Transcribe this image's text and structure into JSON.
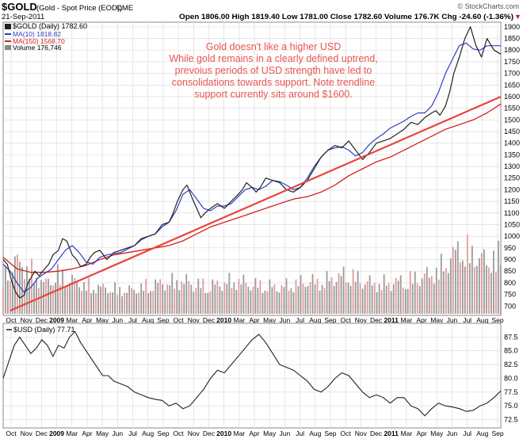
{
  "header": {
    "symbol": "$GOLD",
    "description": "(Gold - Spot Price (EOD))",
    "exchange": "CME",
    "date": "21-Sep-2011",
    "watermark": "© StockCharts.com",
    "ohlc": "Open 1806.00  High 1819.40  Low 1781.00  Close 1782.60  Volume 176.7K  Chg -24.60 (-1.36%)",
    "chg_arrow": "▼"
  },
  "legend": {
    "price": "$GOLD (Daily) 1782.60",
    "ma10": "MA(10) 1818.82",
    "ma150": "MA(150) 1568.70",
    "volume": "Volume 176,746"
  },
  "annotation": {
    "lines": [
      "Gold doesn't like a higher USD",
      "While gold remains in a clearly defined uptrend,",
      "prevoius periods of USD strength have led to",
      "consolidations towards support. Note trendline",
      "support currently sits around $1600."
    ]
  },
  "colors": {
    "price": "#222222",
    "ma10": "#2e3ec8",
    "ma150": "#d62020",
    "trendline": "#e8453c",
    "volume": "#9a9a9a",
    "volume_down": "#e59a9a",
    "grid": "#d8d8d8",
    "annotation": "#e8544f"
  },
  "chart_data": [
    {
      "type": "line",
      "title": "$GOLD (Daily) 1782.60",
      "x_labels": [
        "Oct",
        "Nov",
        "Dec",
        "2009",
        "Mar",
        "Apr",
        "May",
        "Jun",
        "Jul",
        "Aug",
        "Sep",
        "Oct",
        "Nov",
        "Dec",
        "2010",
        "Mar",
        "Apr",
        "May",
        "Jun",
        "Jul",
        "Aug",
        "Sep",
        "Oct",
        "Nov",
        "Dec",
        "2011",
        "Mar",
        "Apr",
        "May",
        "Jun",
        "Jul",
        "Aug",
        "Sep"
      ],
      "y_ticks": [
        700,
        750,
        800,
        850,
        900,
        950,
        1000,
        1050,
        1100,
        1150,
        1200,
        1250,
        1300,
        1350,
        1400,
        1450,
        1500,
        1550,
        1600,
        1650,
        1700,
        1750,
        1800,
        1850,
        1900
      ],
      "ylim": [
        660,
        1920
      ],
      "x_range": [
        0,
        36
      ],
      "series": [
        {
          "name": "$GOLD",
          "x": [
            0,
            0.3,
            0.6,
            0.9,
            1.2,
            1.5,
            1.8,
            2,
            2.3,
            2.6,
            3,
            3.3,
            3.6,
            4,
            4.3,
            4.6,
            5,
            5.3,
            5.6,
            6,
            6.3,
            6.6,
            7,
            7.5,
            8,
            8.5,
            9,
            9.5,
            10,
            10.5,
            11,
            11.5,
            12,
            12.3,
            12.6,
            13,
            13.3,
            13.7,
            14,
            14.3,
            14.6,
            15,
            15.5,
            16,
            16.5,
            17,
            17.3,
            17.6,
            18,
            18.3,
            18.6,
            19,
            19.5,
            20,
            20.5,
            21,
            21.5,
            22,
            22.5,
            23,
            23.5,
            24,
            24.5,
            25,
            25.5,
            26,
            26.5,
            27,
            27.5,
            28,
            28.5,
            29,
            29.5,
            30,
            30.5,
            31,
            31.3,
            31.6,
            32,
            32.3,
            32.6,
            33,
            33.4,
            33.8,
            34.2,
            34.6,
            35,
            35.5,
            36
          ],
          "values": [
            900,
            880,
            810,
            760,
            735,
            745,
            800,
            820,
            850,
            830,
            860,
            880,
            920,
            940,
            990,
            980,
            920,
            900,
            870,
            880,
            910,
            930,
            940,
            900,
            930,
            940,
            950,
            960,
            990,
            1000,
            1010,
            1050,
            1060,
            1100,
            1150,
            1200,
            1220,
            1160,
            1120,
            1080,
            1100,
            1120,
            1140,
            1120,
            1150,
            1180,
            1200,
            1230,
            1210,
            1190,
            1210,
            1250,
            1240,
            1230,
            1200,
            1190,
            1210,
            1240,
            1290,
            1340,
            1370,
            1390,
            1380,
            1410,
            1370,
            1330,
            1360,
            1400,
            1410,
            1420,
            1440,
            1460,
            1490,
            1480,
            1510,
            1530,
            1540,
            1520,
            1560,
            1620,
            1700,
            1770,
            1850,
            1900,
            1820,
            1770,
            1850,
            1800,
            1782.6
          ]
        },
        {
          "name": "MA(10)",
          "x": [
            0,
            0.5,
            1,
            1.5,
            2,
            2.5,
            3,
            3.5,
            4,
            4.5,
            5,
            5.5,
            6,
            6.5,
            7,
            7.5,
            8,
            8.5,
            9,
            9.5,
            10,
            10.5,
            11,
            11.5,
            12,
            12.5,
            13,
            13.5,
            14,
            14.5,
            15,
            15.5,
            16,
            16.5,
            17,
            17.5,
            18,
            18.5,
            19,
            19.5,
            20,
            20.5,
            21,
            21.5,
            22,
            22.5,
            23,
            23.5,
            24,
            24.5,
            25,
            25.5,
            26,
            26.5,
            27,
            27.5,
            28,
            28.5,
            29,
            29.5,
            30,
            30.5,
            31,
            31.5,
            32,
            32.5,
            33,
            33.5,
            34,
            34.5,
            35,
            35.5,
            36
          ],
          "values": [
            880,
            850,
            800,
            760,
            780,
            820,
            840,
            860,
            900,
            940,
            960,
            930,
            890,
            880,
            910,
            920,
            925,
            930,
            945,
            960,
            985,
            1000,
            1010,
            1040,
            1060,
            1110,
            1180,
            1200,
            1160,
            1120,
            1110,
            1130,
            1130,
            1140,
            1170,
            1200,
            1210,
            1200,
            1215,
            1240,
            1235,
            1220,
            1200,
            1210,
            1250,
            1300,
            1340,
            1370,
            1380,
            1385,
            1370,
            1345,
            1360,
            1395,
            1420,
            1440,
            1465,
            1480,
            1495,
            1515,
            1530,
            1530,
            1560,
            1620,
            1700,
            1760,
            1820,
            1830,
            1805,
            1800,
            1818.82,
            1818.82,
            1818.82
          ]
        },
        {
          "name": "MA(150)",
          "x": [
            0,
            1,
            2,
            3,
            4,
            5,
            6,
            7,
            8,
            9,
            10,
            11,
            12,
            13,
            14,
            15,
            16,
            17,
            18,
            19,
            20,
            21,
            22,
            23,
            24,
            25,
            26,
            27,
            28,
            29,
            30,
            31,
            32,
            33,
            34,
            35,
            36
          ],
          "values": [
            910,
            860,
            845,
            845,
            850,
            860,
            875,
            900,
            920,
            930,
            940,
            950,
            960,
            980,
            1010,
            1040,
            1060,
            1080,
            1100,
            1120,
            1140,
            1160,
            1170,
            1190,
            1220,
            1260,
            1290,
            1320,
            1340,
            1370,
            1400,
            1430,
            1460,
            1480,
            1500,
            1530,
            1568.7
          ]
        },
        {
          "name": "Trendline",
          "x": [
            0.5,
            36
          ],
          "values": [
            680,
            1600
          ]
        }
      ],
      "volume": {
        "name": "Volume",
        "latest": 176746,
        "x": [
          0,
          1,
          2,
          3,
          4,
          5,
          6,
          7,
          8,
          9,
          10,
          11,
          12,
          13,
          14,
          15,
          16,
          17,
          18,
          19,
          20,
          21,
          22,
          23,
          24,
          25,
          26,
          27,
          28,
          29,
          30,
          31,
          32,
          33,
          34,
          35,
          36
        ],
        "values": [
          110,
          160,
          130,
          90,
          120,
          100,
          85,
          80,
          75,
          70,
          80,
          90,
          95,
          100,
          90,
          85,
          95,
          100,
          90,
          85,
          80,
          90,
          100,
          95,
          110,
          120,
          100,
          90,
          95,
          100,
          110,
          120,
          150,
          200,
          180,
          160,
          176
        ]
      }
    },
    {
      "type": "line",
      "title": "$USD (Daily) 77.71",
      "x_labels": [
        "Oct",
        "Nov",
        "Dec",
        "2009",
        "Mar",
        "Apr",
        "May",
        "Jun",
        "Jul",
        "Aug",
        "Sep",
        "Oct",
        "Nov",
        "Dec",
        "2010",
        "Mar",
        "Apr",
        "May",
        "Jun",
        "Jul",
        "Aug",
        "Sep",
        "Oct",
        "Nov",
        "Dec",
        "2011",
        "Mar",
        "Apr",
        "May",
        "Jun",
        "Jul",
        "Aug",
        "Sep"
      ],
      "y_ticks": [
        72.5,
        75.0,
        77.5,
        80.0,
        82.5,
        85.0,
        87.5
      ],
      "ylim": [
        71,
        90
      ],
      "x_range": [
        0,
        36
      ],
      "series": [
        {
          "name": "$USD",
          "x": [
            0,
            0.4,
            0.8,
            1.2,
            1.6,
            2,
            2.4,
            2.8,
            3.2,
            3.6,
            4,
            4.4,
            4.8,
            5.2,
            5.6,
            6,
            6.4,
            6.8,
            7.2,
            7.6,
            8,
            8.5,
            9,
            9.5,
            10,
            10.5,
            11,
            11.5,
            12,
            12.5,
            13,
            13.5,
            14,
            14.5,
            15,
            15.5,
            16,
            16.5,
            17,
            17.5,
            18,
            18.5,
            19,
            19.5,
            20,
            20.5,
            21,
            21.5,
            22,
            22.5,
            23,
            23.5,
            24,
            24.5,
            25,
            25.5,
            26,
            26.5,
            27,
            27.5,
            28,
            28.5,
            29,
            29.5,
            30,
            30.5,
            31,
            31.5,
            32,
            32.5,
            33,
            33.5,
            34,
            34.5,
            35,
            35.5,
            36
          ],
          "values": [
            80,
            83,
            86,
            87.5,
            86,
            84.5,
            85.5,
            87,
            86,
            84,
            86,
            85.5,
            87.5,
            88.5,
            86.5,
            85,
            83.5,
            82,
            80.5,
            80.5,
            79.5,
            79,
            78.5,
            77.5,
            77,
            76.5,
            76.2,
            76,
            75,
            75.5,
            74.5,
            75,
            76.5,
            78,
            80,
            81.5,
            81,
            82.5,
            84,
            85.5,
            87,
            88,
            86.5,
            84.5,
            82.5,
            82,
            81.5,
            80.5,
            79.5,
            78,
            77.5,
            78.5,
            80,
            81,
            80.5,
            79,
            77.5,
            76.5,
            77,
            76.5,
            75.5,
            76.5,
            76.5,
            75,
            74.5,
            73.2,
            74.5,
            75.5,
            75,
            74.8,
            74.5,
            74,
            74.2,
            75,
            75.5,
            76.5,
            77.71
          ]
        }
      ]
    }
  ]
}
